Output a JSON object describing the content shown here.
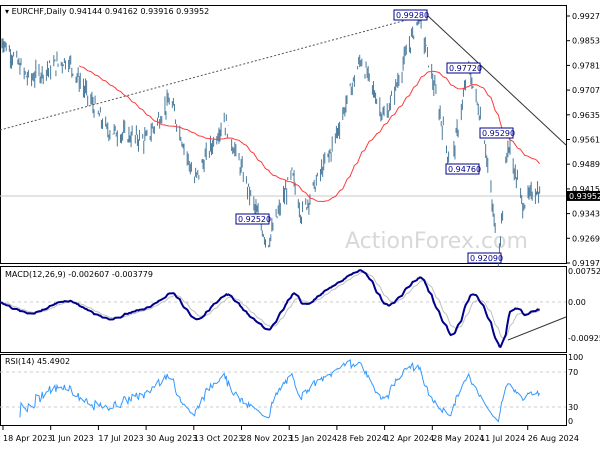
{
  "header": {
    "symbol": "EURCHF,Daily",
    "open": "0.94144",
    "high": "0.94162",
    "low": "0.93916",
    "close": "0.93952"
  },
  "watermark": "ActionForex.com",
  "chart_data": {
    "type": "candlestick",
    "price_axis": {
      "ticks": [
        "0.99270",
        "0.98530",
        "0.97810",
        "0.97070",
        "0.96350",
        "0.95610",
        "0.94890",
        "0.94150",
        "0.93430",
        "0.92690",
        "0.91970"
      ],
      "current": "0.93952",
      "range": [
        0.9197,
        0.9927
      ]
    },
    "x_ticks": [
      "18 Apr 2023",
      "1 Jun 2023",
      "17 Jul 2023",
      "30 Aug 2023",
      "13 Oct 2023",
      "28 Nov 2023",
      "15 Jan 2024",
      "28 Feb 2024",
      "12 Apr 2024",
      "28 May 2024",
      "11 Jul 2024",
      "26 Aug 2024"
    ],
    "closes_keypoints": [
      [
        "2023-04-14",
        0.9871
      ],
      [
        "2023-05-12",
        0.974
      ],
      [
        "2023-06-18",
        0.98
      ],
      [
        "2023-07-25",
        0.959
      ],
      [
        "2023-08-31",
        0.956
      ],
      [
        "2023-09-23",
        0.968
      ],
      [
        "2023-10-16",
        0.944
      ],
      [
        "2023-11-13",
        0.962
      ],
      [
        "2023-12-24",
        0.9252
      ],
      [
        "2024-01-16",
        0.946
      ],
      [
        "2024-01-25",
        0.934
      ],
      [
        "2024-02-22",
        0.953
      ],
      [
        "2024-03-21",
        0.98
      ],
      [
        "2024-04-13",
        0.962
      ],
      [
        "2024-05-15",
        0.9928
      ],
      [
        "2024-06-07",
        0.959
      ],
      [
        "2024-06-14",
        0.9476
      ],
      [
        "2024-07-01",
        0.9772
      ],
      [
        "2024-07-15",
        0.959
      ],
      [
        "2024-07-29",
        0.9209
      ],
      [
        "2024-08-07",
        0.955
      ],
      [
        "2024-08-21",
        0.937
      ],
      [
        "2024-09-03",
        0.9415
      ],
      [
        "2024-09-06",
        0.93952
      ]
    ],
    "annotations": [
      "0.92520",
      "0.99280",
      "0.97720",
      "0.95290",
      "0.94760",
      "0.92090"
    ],
    "moving_average_color": "#ff3b3b",
    "bar_color": "#4a7a9c",
    "macd": {
      "label": "MACD(12,26,9) -0.002607 -0.003779",
      "ticks": [
        "0.007526",
        "0.00",
        "-0.009252"
      ],
      "main_color": "#00008b",
      "signal_color": "#c0c0c0"
    },
    "rsi": {
      "label": "RSI(14) 45.4902",
      "ticks": [
        "100",
        "70",
        "30",
        "0"
      ],
      "color": "#3399ff"
    }
  }
}
